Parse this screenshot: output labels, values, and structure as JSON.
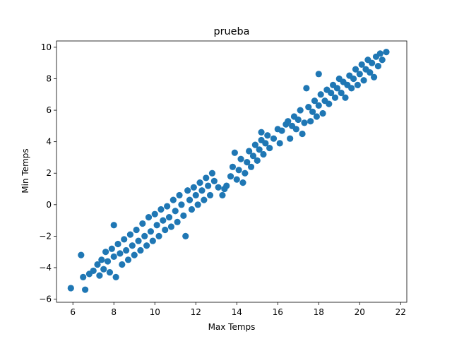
{
  "chart_data": {
    "type": "scatter",
    "title": "prueba",
    "xlabel": "Max Temps",
    "ylabel": "Min Temps",
    "xlim": [
      5.2,
      22.3
    ],
    "ylim": [
      -6.2,
      10.4
    ],
    "xticks": [
      6,
      8,
      10,
      12,
      14,
      16,
      18,
      20,
      22
    ],
    "yticks": [
      -6,
      -4,
      -2,
      0,
      2,
      4,
      6,
      8,
      10
    ],
    "grid": false,
    "marker_color": "#1f77b4",
    "series": [
      {
        "points": [
          [
            5.9,
            -5.3
          ],
          [
            6.4,
            -3.2
          ],
          [
            6.6,
            -5.4
          ],
          [
            6.5,
            -4.6
          ],
          [
            6.8,
            -4.4
          ],
          [
            7.0,
            -4.2
          ],
          [
            7.2,
            -3.8
          ],
          [
            7.3,
            -4.5
          ],
          [
            7.4,
            -3.5
          ],
          [
            7.5,
            -4.1
          ],
          [
            7.6,
            -3.0
          ],
          [
            7.7,
            -3.6
          ],
          [
            7.8,
            -4.3
          ],
          [
            7.9,
            -2.8
          ],
          [
            8.0,
            -3.3
          ],
          [
            8.1,
            -4.6
          ],
          [
            8.0,
            -1.3
          ],
          [
            8.2,
            -2.5
          ],
          [
            8.3,
            -3.1
          ],
          [
            8.4,
            -3.8
          ],
          [
            8.5,
            -2.2
          ],
          [
            8.6,
            -2.9
          ],
          [
            8.7,
            -3.5
          ],
          [
            8.8,
            -1.9
          ],
          [
            8.9,
            -2.6
          ],
          [
            9.0,
            -3.2
          ],
          [
            9.1,
            -1.6
          ],
          [
            9.2,
            -2.3
          ],
          [
            9.3,
            -2.9
          ],
          [
            9.4,
            -1.2
          ],
          [
            9.5,
            -2.0
          ],
          [
            9.6,
            -2.6
          ],
          [
            9.7,
            -0.8
          ],
          [
            9.8,
            -1.7
          ],
          [
            9.9,
            -2.3
          ],
          [
            10.0,
            -0.6
          ],
          [
            10.1,
            -1.3
          ],
          [
            10.2,
            -2.0
          ],
          [
            10.3,
            -0.3
          ],
          [
            10.4,
            -1.0
          ],
          [
            10.5,
            -1.6
          ],
          [
            10.6,
            -0.1
          ],
          [
            10.7,
            -0.8
          ],
          [
            10.8,
            -1.4
          ],
          [
            10.9,
            0.3
          ],
          [
            11.0,
            -0.4
          ],
          [
            11.1,
            -1.1
          ],
          [
            11.2,
            0.6
          ],
          [
            11.3,
            0.0
          ],
          [
            11.4,
            -0.7
          ],
          [
            11.5,
            -2.0
          ],
          [
            11.6,
            0.9
          ],
          [
            11.7,
            0.3
          ],
          [
            11.8,
            -0.3
          ],
          [
            11.9,
            1.1
          ],
          [
            12.0,
            0.6
          ],
          [
            12.1,
            0.0
          ],
          [
            12.2,
            1.4
          ],
          [
            12.3,
            0.9
          ],
          [
            12.4,
            0.3
          ],
          [
            12.5,
            1.7
          ],
          [
            12.6,
            1.2
          ],
          [
            12.7,
            0.6
          ],
          [
            12.8,
            2.0
          ],
          [
            12.9,
            1.5
          ],
          [
            13.1,
            1.1
          ],
          [
            13.3,
            0.6
          ],
          [
            13.5,
            1.2
          ],
          [
            13.7,
            1.8
          ],
          [
            13.8,
            2.4
          ],
          [
            13.9,
            3.3
          ],
          [
            14.0,
            1.6
          ],
          [
            14.1,
            2.2
          ],
          [
            14.2,
            2.9
          ],
          [
            14.3,
            1.4
          ],
          [
            14.4,
            2.0
          ],
          [
            14.5,
            2.7
          ],
          [
            14.6,
            3.4
          ],
          [
            14.7,
            2.4
          ],
          [
            14.8,
            3.1
          ],
          [
            14.9,
            3.8
          ],
          [
            15.0,
            2.8
          ],
          [
            15.1,
            3.5
          ],
          [
            15.2,
            4.1
          ],
          [
            15.3,
            3.2
          ],
          [
            15.4,
            3.9
          ],
          [
            15.5,
            4.4
          ],
          [
            15.6,
            3.6
          ],
          [
            15.8,
            4.2
          ],
          [
            16.0,
            4.8
          ],
          [
            16.1,
            3.9
          ],
          [
            16.2,
            4.7
          ],
          [
            16.4,
            5.1
          ],
          [
            16.5,
            5.3
          ],
          [
            16.6,
            4.2
          ],
          [
            16.7,
            5.0
          ],
          [
            16.8,
            5.6
          ],
          [
            16.9,
            4.8
          ],
          [
            17.0,
            5.4
          ],
          [
            17.1,
            6.0
          ],
          [
            17.2,
            4.5
          ],
          [
            17.3,
            5.2
          ],
          [
            17.4,
            7.4
          ],
          [
            17.5,
            6.2
          ],
          [
            17.6,
            5.3
          ],
          [
            17.7,
            5.9
          ],
          [
            17.8,
            6.6
          ],
          [
            17.9,
            5.6
          ],
          [
            18.0,
            6.3
          ],
          [
            18.1,
            7.0
          ],
          [
            18.2,
            5.8
          ],
          [
            18.3,
            6.6
          ],
          [
            18.4,
            7.3
          ],
          [
            18.5,
            6.4
          ],
          [
            18.6,
            7.1
          ],
          [
            18.7,
            7.6
          ],
          [
            18.8,
            6.8
          ],
          [
            18.9,
            7.4
          ],
          [
            19.0,
            8.0
          ],
          [
            19.1,
            7.1
          ],
          [
            19.2,
            7.8
          ],
          [
            19.3,
            6.8
          ],
          [
            19.4,
            7.6
          ],
          [
            19.5,
            8.2
          ],
          [
            19.6,
            7.4
          ],
          [
            19.7,
            8.0
          ],
          [
            19.8,
            8.6
          ],
          [
            19.9,
            7.6
          ],
          [
            20.0,
            8.3
          ],
          [
            20.1,
            8.9
          ],
          [
            20.2,
            7.9
          ],
          [
            20.3,
            8.6
          ],
          [
            20.4,
            9.2
          ],
          [
            20.5,
            8.4
          ],
          [
            20.6,
            9.0
          ],
          [
            20.7,
            8.1
          ],
          [
            20.8,
            9.4
          ],
          [
            20.9,
            8.8
          ],
          [
            21.0,
            9.6
          ],
          [
            21.1,
            9.2
          ],
          [
            21.3,
            9.7
          ],
          [
            18.0,
            8.3
          ],
          [
            15.2,
            4.6
          ],
          [
            13.4,
            1.0
          ]
        ]
      }
    ]
  }
}
